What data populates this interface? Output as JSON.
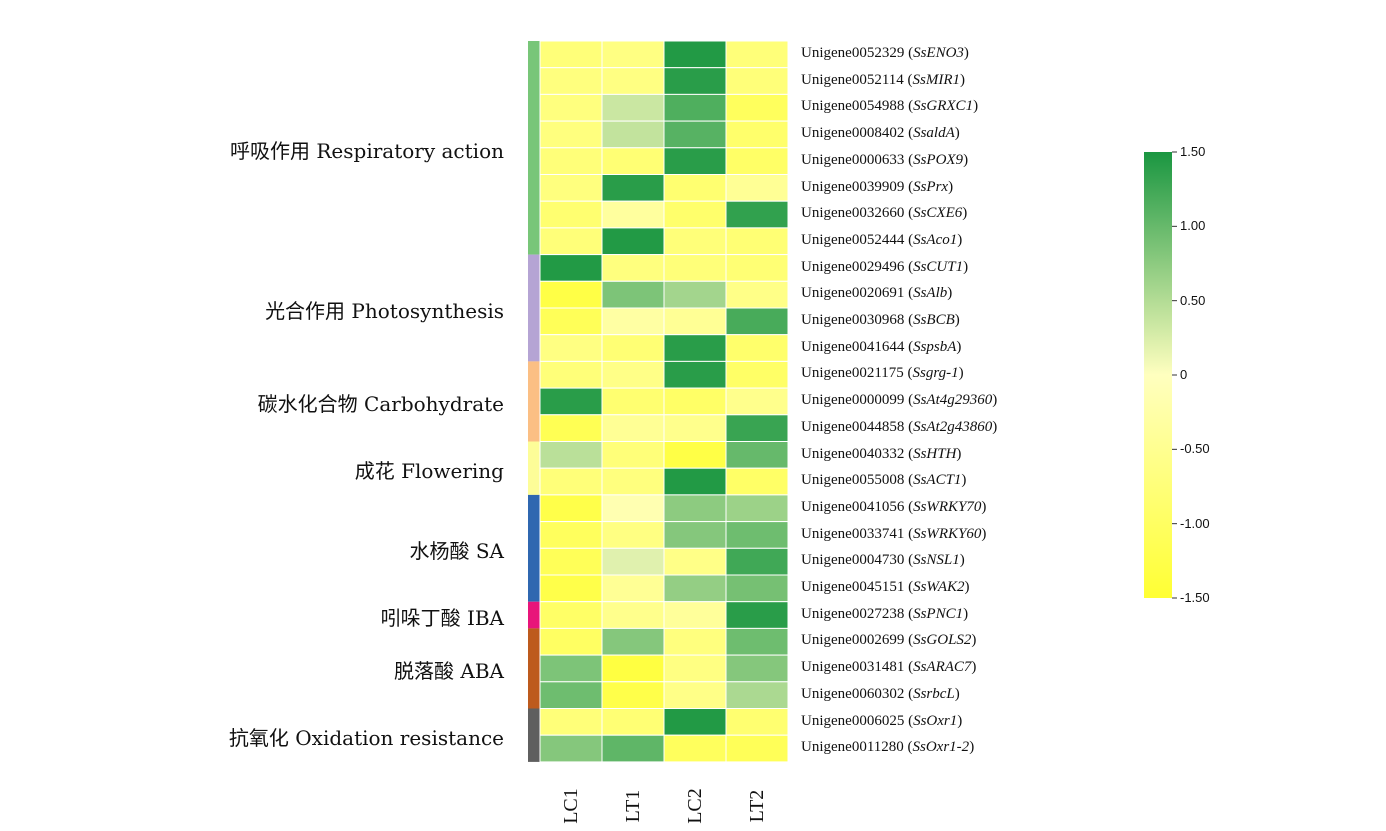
{
  "chart_data": {
    "type": "heatmap",
    "columns": [
      "LC1",
      "LT1",
      "LC2",
      "LT2"
    ],
    "rows": [
      {
        "id": "Unigene0052329",
        "gene": "SsENO3"
      },
      {
        "id": "Unigene0052114",
        "gene": "SsMIR1"
      },
      {
        "id": "Unigene0054988",
        "gene": "SsGRXC1"
      },
      {
        "id": "Unigene0008402",
        "gene": "SsaldA"
      },
      {
        "id": "Unigene0000633",
        "gene": "SsPOX9"
      },
      {
        "id": "Unigene0039909",
        "gene": "SsPrx"
      },
      {
        "id": "Unigene0032660",
        "gene": "SsCXE6"
      },
      {
        "id": "Unigene0052444",
        "gene": "SsAco1"
      },
      {
        "id": "Unigene0029496",
        "gene": "SsCUT1"
      },
      {
        "id": "Unigene0020691",
        "gene": "SsAlb"
      },
      {
        "id": "Unigene0030968",
        "gene": "SsBCB"
      },
      {
        "id": "Unigene0041644",
        "gene": "SspsbA"
      },
      {
        "id": "Unigene0021175",
        "gene": "Ssgrg-1"
      },
      {
        "id": "Unigene0000099",
        "gene": "SsAt4g29360"
      },
      {
        "id": "Unigene0044858",
        "gene": "SsAt2g43860"
      },
      {
        "id": "Unigene0040332",
        "gene": "SsHTH"
      },
      {
        "id": "Unigene0055008",
        "gene": "SsACT1"
      },
      {
        "id": "Unigene0041056",
        "gene": "SsWRKY70"
      },
      {
        "id": "Unigene0033741",
        "gene": "SsWRKY60"
      },
      {
        "id": "Unigene0004730",
        "gene": "SsNSL1"
      },
      {
        "id": "Unigene0045151",
        "gene": "SsWAK2"
      },
      {
        "id": "Unigene0027238",
        "gene": "SsPNC1"
      },
      {
        "id": "Unigene0002699",
        "gene": "SsGOLS2"
      },
      {
        "id": "Unigene0031481",
        "gene": "SsARAC7"
      },
      {
        "id": "Unigene0060302",
        "gene": "SsrbcL"
      },
      {
        "id": "Unigene0006025",
        "gene": "SsOxr1"
      },
      {
        "id": "Unigene0011280",
        "gene": "SsOxr1-2"
      }
    ],
    "values": [
      [
        -0.75,
        -0.65,
        1.45,
        -0.75
      ],
      [
        -0.7,
        -0.65,
        1.4,
        -0.75
      ],
      [
        -0.7,
        0.35,
        1.15,
        -1.05
      ],
      [
        -0.7,
        0.4,
        1.1,
        -0.9
      ],
      [
        -0.75,
        -0.8,
        1.4,
        -0.95
      ],
      [
        -0.7,
        1.4,
        -0.85,
        -0.45
      ],
      [
        -0.85,
        -0.35,
        -0.9,
        1.35
      ],
      [
        -0.75,
        1.45,
        -0.75,
        -0.8
      ],
      [
        1.45,
        -0.7,
        -0.75,
        -0.8
      ],
      [
        -1.3,
        0.85,
        0.6,
        -0.6
      ],
      [
        -1.1,
        -0.3,
        -0.45,
        1.2
      ],
      [
        -0.65,
        -0.8,
        1.4,
        -0.9
      ],
      [
        -0.75,
        -0.6,
        1.4,
        -0.95
      ],
      [
        1.4,
        -0.85,
        -0.95,
        -0.55
      ],
      [
        -1.15,
        -0.45,
        -0.55,
        1.3
      ],
      [
        0.45,
        -0.75,
        -1.3,
        1.0
      ],
      [
        -0.75,
        -0.7,
        1.45,
        -0.95
      ],
      [
        -1.25,
        -0.15,
        0.75,
        0.65
      ],
      [
        -1.05,
        -0.65,
        0.8,
        0.95
      ],
      [
        -1.1,
        0.2,
        -0.6,
        1.25
      ],
      [
        -1.25,
        -0.45,
        0.7,
        0.9
      ],
      [
        -0.95,
        -0.55,
        -0.4,
        1.4
      ],
      [
        -1.0,
        0.8,
        -0.7,
        0.95
      ],
      [
        0.85,
        -1.35,
        -0.65,
        0.8
      ],
      [
        0.95,
        -1.25,
        -0.6,
        0.55
      ],
      [
        -0.75,
        -0.8,
        1.45,
        -0.85
      ],
      [
        0.8,
        1.05,
        -1.05,
        -1.1
      ]
    ],
    "groups": [
      {
        "label": "呼吸作用 Respiratory action",
        "start": 0,
        "end": 7,
        "color": "#78c679"
      },
      {
        "label": "光合作用 Photosynthesis",
        "start": 8,
        "end": 11,
        "color": "#b5a4d4"
      },
      {
        "label": "碳水化合物 Carbohydrate",
        "start": 12,
        "end": 14,
        "color": "#fbbf84"
      },
      {
        "label": "成花 Flowering",
        "start": 15,
        "end": 16,
        "color": "#fdfd98"
      },
      {
        "label": "水杨酸 SA",
        "start": 17,
        "end": 20,
        "color": "#2f67b0"
      },
      {
        "label": "吲哚丁酸 IBA",
        "start": 21,
        "end": 21,
        "color": "#e8157a"
      },
      {
        "label": "脱落酸 ABA",
        "start": 22,
        "end": 24,
        "color": "#bd5a1d"
      },
      {
        "label": "抗氧化 Oxidation resistance",
        "start": 25,
        "end": 26,
        "color": "#5f5f5f"
      }
    ],
    "colorbar": {
      "min": -1.5,
      "max": 1.5,
      "ticks": [
        "1.50",
        "1.00",
        "0.50",
        "0",
        "-0.50",
        "-1.00",
        "-1.50"
      ],
      "tick_values": [
        1.5,
        1.0,
        0.5,
        0,
        -0.5,
        -1.0,
        -1.5
      ],
      "colors": {
        "low": "#ffff33",
        "mid": "#ffffbf",
        "high": "#1a9641"
      }
    }
  }
}
